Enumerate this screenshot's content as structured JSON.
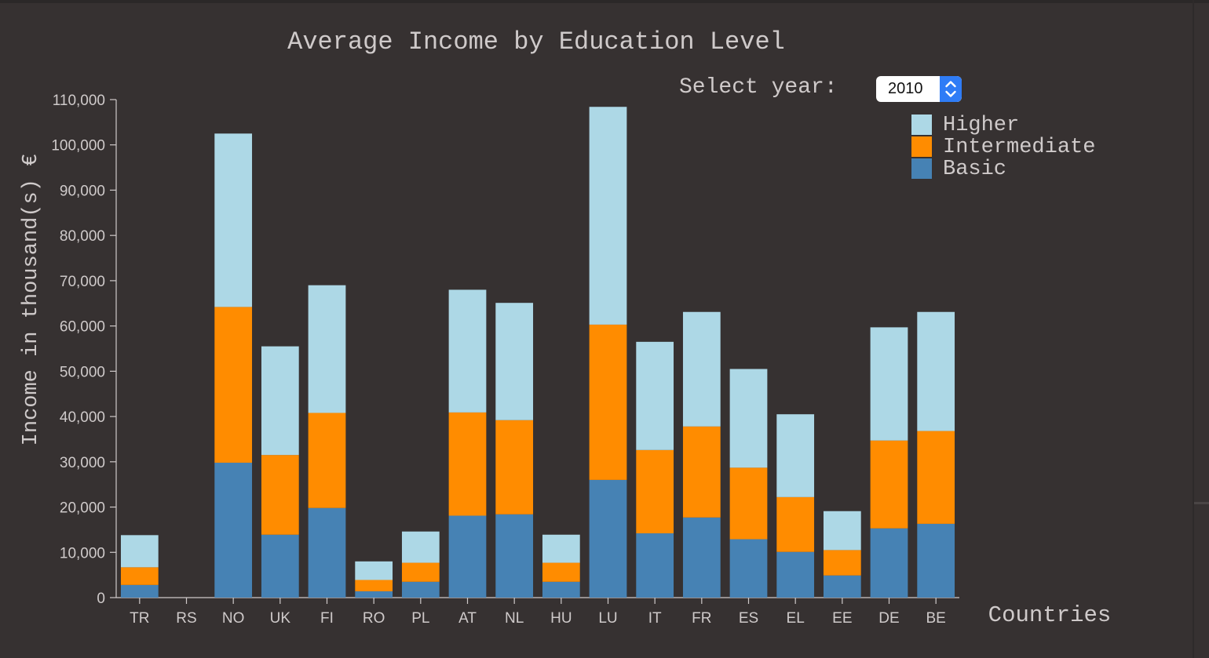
{
  "page": {
    "background_color": "#363131"
  },
  "controls": {
    "year_label": "Select year:",
    "year_value": "2010"
  },
  "chart_data": {
    "type": "bar",
    "stacked": true,
    "title": "Average Income by Education Level",
    "xlabel": "Countries",
    "ylabel": "Income in thousand(s) €",
    "ylim": [
      0,
      110000
    ],
    "yticks": [
      0,
      10000,
      20000,
      30000,
      40000,
      50000,
      60000,
      70000,
      80000,
      90000,
      100000,
      110000
    ],
    "ytick_labels": [
      "0",
      "10,000",
      "20,000",
      "30,000",
      "40,000",
      "50,000",
      "60,000",
      "70,000",
      "80,000",
      "90,000",
      "100,000",
      "110,000"
    ],
    "grid": false,
    "legend_position": "top-right",
    "categories": [
      "TR",
      "RS",
      "NO",
      "UK",
      "FI",
      "RO",
      "PL",
      "AT",
      "NL",
      "HU",
      "LU",
      "IT",
      "FR",
      "ES",
      "EL",
      "EE",
      "DE",
      "BE"
    ],
    "series": [
      {
        "name": "Basic",
        "color": "#4682b4",
        "values": [
          2800,
          0,
          29800,
          13900,
          19800,
          1400,
          3500,
          18100,
          18400,
          3500,
          26000,
          14200,
          17700,
          12900,
          10100,
          4900,
          15300,
          16300
        ]
      },
      {
        "name": "Intermediate",
        "color": "#ff8c00",
        "values": [
          3900,
          0,
          34400,
          17600,
          21000,
          2500,
          4200,
          22800,
          20800,
          4200,
          34300,
          18400,
          20100,
          15800,
          12100,
          5600,
          19400,
          20500
        ]
      },
      {
        "name": "Higher",
        "color": "#add8e6",
        "values": [
          7100,
          0,
          38300,
          24000,
          28200,
          4100,
          6900,
          27100,
          25900,
          6200,
          48100,
          23900,
          25300,
          21800,
          18300,
          8600,
          25000,
          26300
        ]
      }
    ],
    "legend_order": [
      "Higher",
      "Intermediate",
      "Basic"
    ]
  }
}
